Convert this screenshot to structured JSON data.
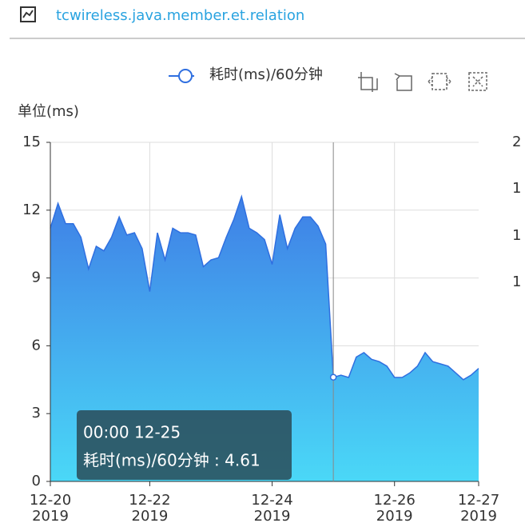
{
  "header": {
    "title": "tcwireless.java.member.et.relation"
  },
  "chart_data": {
    "type": "area",
    "y_axis_name": "单位(ms)",
    "x": [
      "2019-12-20 09:00",
      "2019-12-20 12:00",
      "2019-12-20 15:00",
      "2019-12-20 18:00",
      "2019-12-20 21:00",
      "2019-12-21 00:00",
      "2019-12-21 03:00",
      "2019-12-21 06:00",
      "2019-12-21 09:00",
      "2019-12-21 12:00",
      "2019-12-21 15:00",
      "2019-12-21 18:00",
      "2019-12-21 21:00",
      "2019-12-22 00:00",
      "2019-12-22 03:00",
      "2019-12-22 06:00",
      "2019-12-22 09:00",
      "2019-12-22 12:00",
      "2019-12-22 15:00",
      "2019-12-22 18:00",
      "2019-12-22 21:00",
      "2019-12-23 00:00",
      "2019-12-23 03:00",
      "2019-12-23 06:00",
      "2019-12-23 09:00",
      "2019-12-23 12:00",
      "2019-12-23 15:00",
      "2019-12-23 18:00",
      "2019-12-23 21:00",
      "2019-12-24 00:00",
      "2019-12-24 03:00",
      "2019-12-24 06:00",
      "2019-12-24 09:00",
      "2019-12-24 12:00",
      "2019-12-24 15:00",
      "2019-12-24 18:00",
      "2019-12-24 21:00",
      "2019-12-25 00:00",
      "2019-12-25 03:00",
      "2019-12-25 06:00",
      "2019-12-25 09:00",
      "2019-12-25 12:00",
      "2019-12-25 15:00",
      "2019-12-25 18:00",
      "2019-12-25 21:00",
      "2019-12-26 00:00",
      "2019-12-26 03:00",
      "2019-12-26 06:00",
      "2019-12-26 09:00",
      "2019-12-26 12:00",
      "2019-12-26 15:00",
      "2019-12-26 18:00",
      "2019-12-26 21:00",
      "2019-12-27 00:00",
      "2019-12-27 03:00",
      "2019-12-27 06:00",
      "2019-12-27 09:00"
    ],
    "series": [
      {
        "name": "耗时(ms)/60分钟",
        "color": "#2f6fe0",
        "values": [
          11.2,
          12.3,
          11.4,
          11.4,
          10.8,
          9.4,
          10.4,
          10.2,
          10.8,
          11.7,
          10.9,
          11.0,
          10.3,
          8.4,
          11.0,
          9.8,
          11.2,
          11.0,
          11.0,
          10.9,
          9.5,
          9.8,
          9.9,
          10.8,
          11.6,
          12.6,
          11.2,
          11.0,
          10.7,
          9.6,
          11.8,
          10.3,
          11.2,
          11.7,
          11.7,
          11.3,
          10.5,
          4.61,
          4.7,
          4.6,
          5.5,
          5.7,
          5.4,
          5.3,
          5.1,
          4.6,
          4.6,
          4.8,
          5.1,
          5.7,
          5.3,
          5.2,
          5.1,
          4.8,
          4.5,
          4.7,
          5.0
        ]
      }
    ],
    "xlim": [
      "2019-12-20 09:00",
      "2019-12-27 09:00"
    ],
    "xticks": [
      {
        "value": "2019-12-20 09:00",
        "label": "12-20\n2019"
      },
      {
        "value": "2019-12-22 00:00",
        "label": "12-22\n2019"
      },
      {
        "value": "2019-12-24 00:00",
        "label": "12-24\n2019"
      },
      {
        "value": "2019-12-26 00:00",
        "label": "12-26\n2019"
      },
      {
        "value": "2019-12-27 09:00",
        "label": "12-27\n2019"
      }
    ],
    "ylim": [
      0,
      15
    ],
    "yticks": [
      0,
      3,
      6,
      9,
      12,
      15
    ],
    "grid": true,
    "tooltip": {
      "index": 37,
      "title": "00:00 12-25",
      "text": "耗时(ms)/60分钟 : 4.61"
    },
    "clipped_labels": [
      "2",
      "1",
      "1",
      "1"
    ]
  }
}
